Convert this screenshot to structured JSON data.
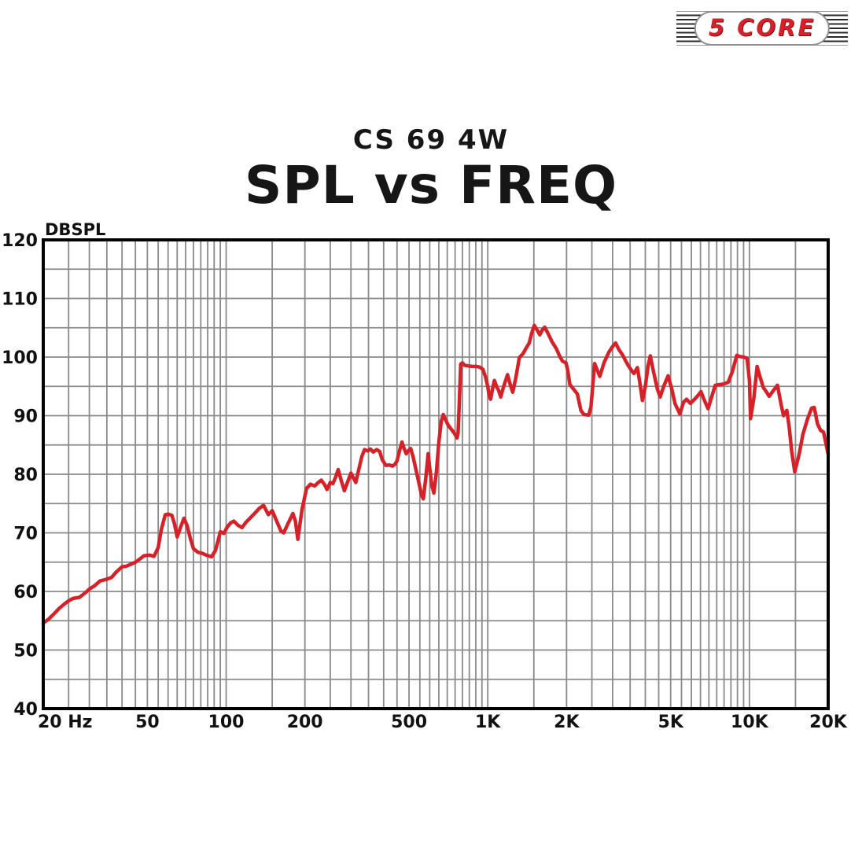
{
  "logo": {
    "text": "5 CORE",
    "text_color": "#d8202a",
    "stripe_color": "#2a2a2a"
  },
  "header": {
    "subtitle": "CS 69 4W",
    "title": "SPL vs FREQ"
  },
  "chart_data": {
    "type": "line",
    "title": "SPL vs FREQ",
    "subtitle": "CS 69 4W",
    "ylabel": "DBSPL",
    "xlabel": "",
    "x_scale": "log",
    "x_range": [
      20,
      20000
    ],
    "y_range": [
      40,
      120
    ],
    "y_label_step": 10,
    "y_grid_step": 5,
    "grid": true,
    "grid_color": "#8a8a8a",
    "axis_color": "#000000",
    "legend": "none",
    "x_ticks": [
      {
        "f": 20,
        "label": "20 Hz"
      },
      {
        "f": 50,
        "label": "50"
      },
      {
        "f": 100,
        "label": "100"
      },
      {
        "f": 200,
        "label": "200"
      },
      {
        "f": 500,
        "label": "500"
      },
      {
        "f": 1000,
        "label": "1K"
      },
      {
        "f": 2000,
        "label": "2K"
      },
      {
        "f": 5000,
        "label": "5K"
      },
      {
        "f": 10000,
        "label": "10K"
      },
      {
        "f": 20000,
        "label": "20K"
      }
    ],
    "series": [
      {
        "name": "SPL",
        "color": "#d62128",
        "points": [
          [
            20,
            54.6
          ],
          [
            21,
            55.3
          ],
          [
            22,
            56.2
          ],
          [
            23,
            57.1
          ],
          [
            24,
            57.8
          ],
          [
            25,
            58.4
          ],
          [
            26,
            58.8
          ],
          [
            27.5,
            59.0
          ],
          [
            29,
            59.8
          ],
          [
            30,
            60.4
          ],
          [
            31.5,
            61.0
          ],
          [
            33,
            61.8
          ],
          [
            35,
            62.1
          ],
          [
            36.5,
            62.4
          ],
          [
            38,
            63.3
          ],
          [
            40,
            64.2
          ],
          [
            41.5,
            64.3
          ],
          [
            43,
            64.6
          ],
          [
            45,
            65.0
          ],
          [
            47,
            65.6
          ],
          [
            48.5,
            66.1
          ],
          [
            51,
            66.2
          ],
          [
            53,
            66.0
          ],
          [
            55,
            67.5
          ],
          [
            56.5,
            70.5
          ],
          [
            58.5,
            73.1
          ],
          [
            60,
            73.2
          ],
          [
            62,
            73.0
          ],
          [
            63.5,
            71.5
          ],
          [
            65,
            69.3
          ],
          [
            67,
            71.0
          ],
          [
            69,
            72.5
          ],
          [
            71,
            71.2
          ],
          [
            73,
            69.0
          ],
          [
            75,
            67.3
          ],
          [
            78,
            66.7
          ],
          [
            81,
            66.5
          ],
          [
            84,
            66.2
          ],
          [
            88,
            65.9
          ],
          [
            91,
            67.0
          ],
          [
            93,
            68.5
          ],
          [
            95,
            70.2
          ],
          [
            98,
            69.9
          ],
          [
            101,
            71.0
          ],
          [
            104,
            71.7
          ],
          [
            107,
            72.0
          ],
          [
            111,
            71.3
          ],
          [
            115,
            70.9
          ],
          [
            119,
            71.8
          ],
          [
            124,
            72.6
          ],
          [
            129,
            73.4
          ],
          [
            134,
            74.2
          ],
          [
            139,
            74.7
          ],
          [
            145,
            73.1
          ],
          [
            150,
            73.8
          ],
          [
            156,
            72.0
          ],
          [
            162,
            70.3
          ],
          [
            166,
            70.0
          ],
          [
            172,
            71.5
          ],
          [
            180,
            73.3
          ],
          [
            184,
            72.0
          ],
          [
            188,
            68.9
          ],
          [
            195,
            74.0
          ],
          [
            203,
            77.6
          ],
          [
            210,
            78.3
          ],
          [
            218,
            78.0
          ],
          [
            225,
            78.6
          ],
          [
            231,
            79.0
          ],
          [
            238,
            78.2
          ],
          [
            243,
            77.4
          ],
          [
            250,
            78.6
          ],
          [
            256,
            78.4
          ],
          [
            262,
            79.5
          ],
          [
            268,
            80.8
          ],
          [
            275,
            79.0
          ],
          [
            283,
            77.2
          ],
          [
            292,
            78.8
          ],
          [
            300,
            80.2
          ],
          [
            307,
            79.3
          ],
          [
            313,
            78.6
          ],
          [
            322,
            81.0
          ],
          [
            330,
            83.0
          ],
          [
            338,
            84.2
          ],
          [
            348,
            84.0
          ],
          [
            356,
            84.3
          ],
          [
            365,
            83.8
          ],
          [
            376,
            84.2
          ],
          [
            386,
            83.9
          ],
          [
            395,
            82.5
          ],
          [
            408,
            81.5
          ],
          [
            420,
            81.6
          ],
          [
            432,
            81.4
          ],
          [
            442,
            81.7
          ],
          [
            450,
            82.3
          ],
          [
            460,
            84.0
          ],
          [
            470,
            85.5
          ],
          [
            478,
            84.5
          ],
          [
            488,
            83.5
          ],
          [
            497,
            84.0
          ],
          [
            507,
            84.4
          ],
          [
            518,
            83.0
          ],
          [
            530,
            81.0
          ],
          [
            543,
            78.9
          ],
          [
            558,
            76.5
          ],
          [
            567,
            75.8
          ],
          [
            580,
            79.5
          ],
          [
            592,
            83.5
          ],
          [
            600,
            81.0
          ],
          [
            612,
            78.0
          ],
          [
            622,
            76.8
          ],
          [
            635,
            80.0
          ],
          [
            650,
            85.5
          ],
          [
            664,
            89.0
          ],
          [
            676,
            90.2
          ],
          [
            690,
            89.3
          ],
          [
            705,
            88.4
          ],
          [
            722,
            87.8
          ],
          [
            745,
            87.0
          ],
          [
            763,
            86.2
          ],
          [
            770,
            87.0
          ],
          [
            778,
            92.0
          ],
          [
            788,
            98.8
          ],
          [
            800,
            99.0
          ],
          [
            815,
            98.6
          ],
          [
            840,
            98.5
          ],
          [
            870,
            98.4
          ],
          [
            900,
            98.4
          ],
          [
            930,
            98.3
          ],
          [
            958,
            97.9
          ],
          [
            980,
            96.6
          ],
          [
            1000,
            95.0
          ],
          [
            1012,
            93.4
          ],
          [
            1025,
            92.8
          ],
          [
            1045,
            94.8
          ],
          [
            1060,
            96.0
          ],
          [
            1080,
            95.0
          ],
          [
            1100,
            94.3
          ],
          [
            1120,
            93.2
          ],
          [
            1150,
            95.0
          ],
          [
            1190,
            97.0
          ],
          [
            1215,
            95.5
          ],
          [
            1245,
            94.0
          ],
          [
            1280,
            96.5
          ],
          [
            1320,
            99.9
          ],
          [
            1365,
            100.6
          ],
          [
            1400,
            101.5
          ],
          [
            1440,
            102.4
          ],
          [
            1475,
            104.2
          ],
          [
            1505,
            105.4
          ],
          [
            1545,
            104.6
          ],
          [
            1580,
            103.8
          ],
          [
            1615,
            104.6
          ],
          [
            1650,
            105.1
          ],
          [
            1700,
            104.0
          ],
          [
            1760,
            102.6
          ],
          [
            1830,
            101.4
          ],
          [
            1880,
            100.2
          ],
          [
            1930,
            99.3
          ],
          [
            1990,
            99.0
          ],
          [
            2020,
            97.8
          ],
          [
            2060,
            95.3
          ],
          [
            2120,
            94.6
          ],
          [
            2200,
            93.7
          ],
          [
            2270,
            90.9
          ],
          [
            2330,
            90.2
          ],
          [
            2430,
            90.1
          ],
          [
            2480,
            91.5
          ],
          [
            2560,
            98.9
          ],
          [
            2620,
            97.8
          ],
          [
            2680,
            96.7
          ],
          [
            2780,
            99.0
          ],
          [
            2900,
            100.8
          ],
          [
            3000,
            101.8
          ],
          [
            3080,
            102.4
          ],
          [
            3180,
            101.2
          ],
          [
            3270,
            100.4
          ],
          [
            3380,
            99.2
          ],
          [
            3460,
            98.4
          ],
          [
            3560,
            97.6
          ],
          [
            3620,
            97.2
          ],
          [
            3730,
            98.2
          ],
          [
            3800,
            96.0
          ],
          [
            3900,
            92.6
          ],
          [
            4000,
            95.0
          ],
          [
            4100,
            98.5
          ],
          [
            4180,
            100.2
          ],
          [
            4300,
            97.5
          ],
          [
            4450,
            94.5
          ],
          [
            4560,
            93.2
          ],
          [
            4700,
            95.0
          ],
          [
            4890,
            96.8
          ],
          [
            5050,
            94.5
          ],
          [
            5200,
            92.0
          ],
          [
            5420,
            90.3
          ],
          [
            5600,
            92.3
          ],
          [
            5750,
            92.8
          ],
          [
            5950,
            92.1
          ],
          [
            6200,
            92.9
          ],
          [
            6400,
            93.6
          ],
          [
            6530,
            94.1
          ],
          [
            6700,
            92.8
          ],
          [
            6950,
            91.2
          ],
          [
            7150,
            93.0
          ],
          [
            7400,
            95.2
          ],
          [
            7700,
            95.3
          ],
          [
            7950,
            95.4
          ],
          [
            8300,
            95.7
          ],
          [
            8600,
            97.5
          ],
          [
            8950,
            100.3
          ],
          [
            9200,
            100.1
          ],
          [
            9500,
            100.0
          ],
          [
            9800,
            99.8
          ],
          [
            10000,
            96.0
          ],
          [
            10100,
            89.5
          ],
          [
            10400,
            93.0
          ],
          [
            10700,
            98.4
          ],
          [
            11000,
            96.5
          ],
          [
            11300,
            94.8
          ],
          [
            11600,
            94.1
          ],
          [
            11900,
            93.3
          ],
          [
            12300,
            94.2
          ],
          [
            12800,
            95.2
          ],
          [
            13200,
            92.0
          ],
          [
            13500,
            90.0
          ],
          [
            13900,
            90.9
          ],
          [
            14200,
            88.0
          ],
          [
            14500,
            84.0
          ],
          [
            14900,
            80.4
          ],
          [
            15500,
            83.5
          ],
          [
            16000,
            86.8
          ],
          [
            16700,
            89.5
          ],
          [
            17300,
            91.3
          ],
          [
            17700,
            91.4
          ],
          [
            18200,
            88.6
          ],
          [
            18700,
            87.5
          ],
          [
            19200,
            87.2
          ],
          [
            20000,
            83.4
          ]
        ]
      }
    ]
  }
}
